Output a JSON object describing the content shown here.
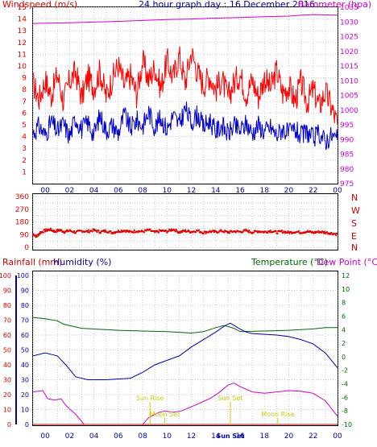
{
  "title": "24 hour graph day : 16 December 2016",
  "colors": {
    "background": "#ffffff",
    "frame": "#000000",
    "grid": "#c8c8c8",
    "windspeed": "#e00000",
    "wind_gust": "#ff0000",
    "wind_avg": "#0000cc",
    "barometer": "#cc00cc",
    "direction": "#e00000",
    "rainfall": "#cc0000",
    "humidity": "#0000aa",
    "temperature": "#006600",
    "dewpoint": "#cc00cc",
    "event": "#cccc00"
  },
  "hour_labels": [
    "00",
    "02",
    "04",
    "06",
    "08",
    "10",
    "12",
    "14",
    "16",
    "18",
    "20",
    "22",
    "00"
  ],
  "chart_data": [
    {
      "type": "line",
      "id": "wind_baro",
      "title": "24 hour graph day : 16 December 2016",
      "ylabel": "Windspeed (m/s)",
      "y2label": "Barometer (hpa)",
      "ylim": [
        0,
        15
      ],
      "y2lim": [
        975,
        1035
      ],
      "x_hours_range": [
        23,
        48
      ],
      "yticks": [
        1,
        2,
        3,
        4,
        5,
        6,
        7,
        8,
        9,
        10,
        11,
        12,
        13,
        14,
        15
      ],
      "y2ticks": [
        975,
        980,
        985,
        990,
        995,
        1000,
        1005,
        1010,
        1015,
        1020,
        1025,
        1030,
        1035
      ],
      "gust_points": [
        [
          23.0,
          8.5
        ],
        [
          23.5,
          7.2
        ],
        [
          24.0,
          8.8
        ],
        [
          24.5,
          7.5
        ],
        [
          25.0,
          9.3
        ],
        [
          25.5,
          7.0
        ],
        [
          26.0,
          8.7
        ],
        [
          26.5,
          9.5
        ],
        [
          27.0,
          7.3
        ],
        [
          27.5,
          9.1
        ],
        [
          28.0,
          8.2
        ],
        [
          28.5,
          9.6
        ],
        [
          29.0,
          7.4
        ],
        [
          29.5,
          8.9
        ],
        [
          30.0,
          10.1
        ],
        [
          30.5,
          8.3
        ],
        [
          31.0,
          9.2
        ],
        [
          31.5,
          7.6
        ],
        [
          32.0,
          10.4
        ],
        [
          32.5,
          8.8
        ],
        [
          33.0,
          9.9
        ],
        [
          33.5,
          8.1
        ],
        [
          34.0,
          10.5
        ],
        [
          34.5,
          9.0
        ],
        [
          35.0,
          10.9
        ],
        [
          35.5,
          8.6
        ],
        [
          36.0,
          11.2
        ],
        [
          36.5,
          9.5
        ],
        [
          37.0,
          8.4
        ],
        [
          37.5,
          9.2
        ],
        [
          38.0,
          8.0
        ],
        [
          38.5,
          8.9
        ],
        [
          39.0,
          7.3
        ],
        [
          39.5,
          8.6
        ],
        [
          40.0,
          9.3
        ],
        [
          40.5,
          7.6
        ],
        [
          41.0,
          8.8
        ],
        [
          41.5,
          7.4
        ],
        [
          42.0,
          9.0
        ],
        [
          42.5,
          8.1
        ],
        [
          43.0,
          9.6
        ],
        [
          43.5,
          7.7
        ],
        [
          44.0,
          8.3
        ],
        [
          44.5,
          7.0
        ],
        [
          45.0,
          8.6
        ],
        [
          45.5,
          6.9
        ],
        [
          46.0,
          8.0
        ],
        [
          46.5,
          6.6
        ],
        [
          47.0,
          7.8
        ],
        [
          47.5,
          6.5
        ],
        [
          48.0,
          5.0
        ]
      ],
      "avg_points": [
        [
          23.0,
          4.3
        ],
        [
          23.5,
          4.9
        ],
        [
          24.0,
          4.1
        ],
        [
          24.5,
          5.3
        ],
        [
          25.0,
          4.4
        ],
        [
          25.5,
          5.1
        ],
        [
          26.0,
          4.0
        ],
        [
          26.5,
          5.6
        ],
        [
          27.0,
          4.6
        ],
        [
          27.5,
          5.2
        ],
        [
          28.0,
          4.2
        ],
        [
          28.5,
          5.8
        ],
        [
          29.0,
          4.5
        ],
        [
          29.5,
          5.0
        ],
        [
          30.0,
          4.3
        ],
        [
          30.5,
          5.9
        ],
        [
          31.0,
          4.7
        ],
        [
          31.5,
          5.4
        ],
        [
          32.0,
          4.9
        ],
        [
          32.5,
          6.1
        ],
        [
          33.0,
          4.8
        ],
        [
          33.5,
          5.6
        ],
        [
          34.0,
          4.6
        ],
        [
          34.5,
          5.8
        ],
        [
          35.0,
          5.0
        ],
        [
          35.5,
          6.4
        ],
        [
          36.0,
          5.2
        ],
        [
          36.5,
          5.9
        ],
        [
          37.0,
          4.8
        ],
        [
          37.5,
          5.4
        ],
        [
          38.0,
          4.4
        ],
        [
          38.5,
          5.0
        ],
        [
          39.0,
          4.2
        ],
        [
          39.5,
          4.9
        ],
        [
          40.0,
          4.5
        ],
        [
          40.5,
          5.1
        ],
        [
          41.0,
          4.3
        ],
        [
          41.5,
          5.0
        ],
        [
          42.0,
          4.4
        ],
        [
          42.5,
          4.8
        ],
        [
          43.0,
          4.1
        ],
        [
          43.5,
          4.7
        ],
        [
          44.0,
          4.2
        ],
        [
          44.5,
          4.6
        ],
        [
          45.0,
          4.0
        ],
        [
          45.5,
          4.4
        ],
        [
          46.0,
          3.8
        ],
        [
          46.5,
          4.3
        ],
        [
          47.0,
          3.6
        ],
        [
          47.5,
          4.1
        ],
        [
          48.0,
          3.7
        ]
      ],
      "baro_points": [
        [
          23.0,
          1029.5
        ],
        [
          26.0,
          1029.7
        ],
        [
          30.0,
          1030.2
        ],
        [
          34.0,
          1030.8
        ],
        [
          36.0,
          1031.0
        ],
        [
          38.0,
          1031.3
        ],
        [
          40.0,
          1031.5
        ],
        [
          42.0,
          1031.8
        ],
        [
          44.0,
          1032.0
        ],
        [
          45.0,
          1032.3
        ],
        [
          46.0,
          1032.5
        ],
        [
          48.0,
          1032.3
        ]
      ]
    },
    {
      "type": "scatter",
      "id": "wind_direction",
      "ylim": [
        0,
        360
      ],
      "yticks": [
        0,
        45,
        90,
        135,
        180,
        225,
        270,
        315,
        360
      ],
      "yticklabels": [
        "0",
        "45",
        "90",
        "135",
        "180",
        "225",
        "270",
        "315",
        "360"
      ],
      "compass": [
        "N",
        "W",
        "S",
        "E",
        "N"
      ],
      "points": [
        [
          23.0,
          95
        ],
        [
          23.3,
          75
        ],
        [
          23.6,
          105
        ],
        [
          24.0,
          118
        ],
        [
          24.4,
          126
        ],
        [
          24.8,
          112
        ],
        [
          25.2,
          122
        ],
        [
          25.6,
          110
        ],
        [
          26.0,
          118
        ],
        [
          26.5,
          106
        ],
        [
          27.0,
          116
        ],
        [
          27.5,
          112
        ],
        [
          28.0,
          121
        ],
        [
          28.5,
          109
        ],
        [
          29.0,
          116
        ],
        [
          29.5,
          104
        ],
        [
          30.0,
          114
        ],
        [
          30.5,
          119
        ],
        [
          31.0,
          108
        ],
        [
          31.5,
          116
        ],
        [
          32.0,
          111
        ],
        [
          32.5,
          122
        ],
        [
          33.0,
          106
        ],
        [
          33.5,
          117
        ],
        [
          34.0,
          112
        ],
        [
          34.5,
          128
        ],
        [
          35.0,
          107
        ],
        [
          35.5,
          116
        ],
        [
          36.0,
          110
        ],
        [
          36.5,
          118
        ],
        [
          37.0,
          104
        ],
        [
          37.5,
          112
        ],
        [
          38.0,
          109
        ],
        [
          38.5,
          116
        ],
        [
          39.0,
          106
        ],
        [
          39.5,
          113
        ],
        [
          40.0,
          110
        ],
        [
          40.5,
          118
        ],
        [
          41.0,
          106
        ],
        [
          41.5,
          114
        ],
        [
          42.0,
          108
        ],
        [
          42.5,
          116
        ],
        [
          43.0,
          106
        ],
        [
          43.5,
          112
        ],
        [
          44.0,
          104
        ],
        [
          44.5,
          110
        ],
        [
          45.0,
          106
        ],
        [
          45.5,
          112
        ],
        [
          46.0,
          104
        ],
        [
          46.5,
          110
        ],
        [
          47.0,
          105
        ],
        [
          47.5,
          99
        ],
        [
          48.0,
          92
        ]
      ]
    },
    {
      "type": "line",
      "id": "rain_humidity_temp",
      "left_labels": [
        "Rainfall (mm)",
        "Humidity (%)"
      ],
      "right_labels": [
        "Temperature (°C)",
        "Dew Point (°C)"
      ],
      "ylim": [
        0,
        100
      ],
      "y2lim": [
        -10,
        12
      ],
      "yticks": [
        0,
        10,
        20,
        30,
        40,
        50,
        60,
        70,
        80,
        90,
        100
      ],
      "y2ticks": [
        -10,
        -8,
        -6,
        -4,
        -2,
        0,
        2,
        4,
        6,
        8,
        10,
        12
      ],
      "rainfall": [
        [
          23,
          0
        ],
        [
          48,
          0
        ]
      ],
      "humidity": [
        [
          23,
          46
        ],
        [
          24,
          48
        ],
        [
          25,
          46
        ],
        [
          25.7,
          40
        ],
        [
          26.5,
          32
        ],
        [
          27.5,
          30
        ],
        [
          29,
          30
        ],
        [
          31,
          31
        ],
        [
          32,
          35
        ],
        [
          33,
          40
        ],
        [
          34,
          43
        ],
        [
          35,
          46
        ],
        [
          36,
          52
        ],
        [
          37,
          57
        ],
        [
          38,
          62
        ],
        [
          38.7,
          66
        ],
        [
          39.2,
          68
        ],
        [
          40,
          64
        ],
        [
          40.5,
          62
        ],
        [
          41,
          61
        ],
        [
          43,
          60
        ],
        [
          44,
          59
        ],
        [
          45,
          57
        ],
        [
          46,
          54
        ],
        [
          47,
          48
        ],
        [
          48,
          38
        ]
      ],
      "temperature": [
        [
          23,
          5.8
        ],
        [
          24,
          5.6
        ],
        [
          25,
          5.3
        ],
        [
          25.5,
          4.8
        ],
        [
          27,
          4.2
        ],
        [
          29,
          4.0
        ],
        [
          30,
          3.9
        ],
        [
          32,
          3.8
        ],
        [
          34,
          3.7
        ],
        [
          35,
          3.6
        ],
        [
          36,
          3.5
        ],
        [
          37,
          3.7
        ],
        [
          38,
          4.3
        ],
        [
          38.7,
          4.6
        ],
        [
          39.5,
          4.2
        ],
        [
          40,
          3.7
        ],
        [
          42,
          3.8
        ],
        [
          44,
          3.9
        ],
        [
          46,
          4.1
        ],
        [
          47,
          4.3
        ],
        [
          48,
          4.3
        ]
      ],
      "dewpoint": [
        [
          23,
          -5.2
        ],
        [
          23.8,
          -5.0
        ],
        [
          24.2,
          -6.2
        ],
        [
          24.8,
          -6.4
        ],
        [
          25.3,
          -6.2
        ],
        [
          25.7,
          -7.2
        ],
        [
          26.5,
          -8.5
        ],
        [
          27.2,
          -10
        ],
        [
          32,
          -10
        ],
        [
          32.5,
          -9.0
        ],
        [
          33.2,
          -8.3
        ],
        [
          33.8,
          -8.0
        ],
        [
          34.5,
          -8.2
        ],
        [
          35.2,
          -8.0
        ],
        [
          36,
          -7.4
        ],
        [
          36.5,
          -7.0
        ],
        [
          37.5,
          -6.2
        ],
        [
          38.2,
          -5.4
        ],
        [
          39,
          -4.2
        ],
        [
          39.5,
          -3.9
        ],
        [
          40,
          -4.4
        ],
        [
          41,
          -5.2
        ],
        [
          42,
          -5.4
        ],
        [
          43,
          -5.2
        ],
        [
          44,
          -5.0
        ],
        [
          45,
          -5.1
        ],
        [
          46,
          -5.4
        ],
        [
          47,
          -6.5
        ],
        [
          48,
          -8.8
        ]
      ],
      "events": [
        {
          "label": "Sun Rise",
          "hour": 32.6
        },
        {
          "label": "Moon Set",
          "hour": 33.8
        },
        {
          "label": "Sun Set",
          "hour": 39.2
        },
        {
          "label": "Moon Rise",
          "hour": 43.1
        }
      ],
      "bottom_event_label": "Sun Set"
    }
  ]
}
